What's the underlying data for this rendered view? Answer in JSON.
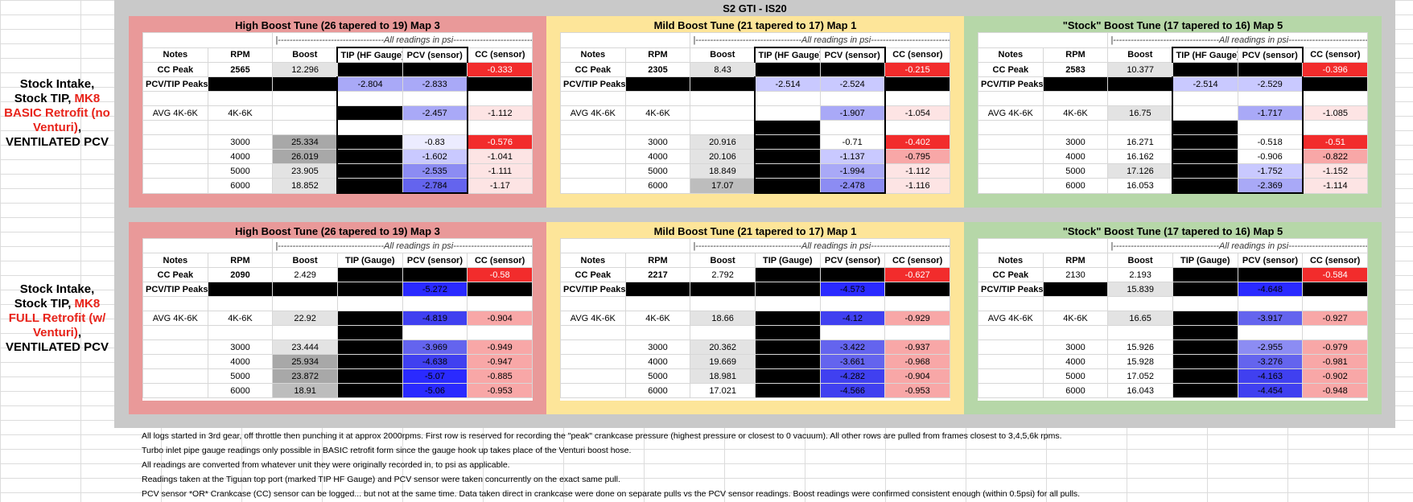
{
  "sheet_title": "S2 GTI - IS20",
  "row_labels": [
    {
      "line1": "Stock Intake,",
      "line2a": "Stock TIP, ",
      "line2b": "MK8",
      "line3": "BASIC Retrofit (no",
      "line4": "Venturi)",
      "line4b": ",",
      "line5": "VENTILATED PCV"
    },
    {
      "line1": "Stock Intake,",
      "line2a": "Stock TIP, ",
      "line2b": "MK8",
      "line3": "FULL Retrofit (w/",
      "line4": "Venturi)",
      "line4b": ",",
      "line5": "VENTILATED PCV"
    }
  ],
  "colors": {
    "high": "#e99999",
    "mild": "#fde599",
    "stock": "#b6d7a8",
    "gray": "#c9c9c9"
  },
  "panels": [
    {
      "title": "High Boost Tune (26 tapered to 19) Map 3",
      "note": "|------------------------------------All readings in psi------------------------------------|",
      "headers": [
        "Notes",
        "RPM",
        "Boost",
        "TIP (HF Gauge)",
        "PCV (sensor)",
        "CC (sensor)"
      ],
      "rows": [
        [
          "CC Peak",
          "2565",
          "12.296",
          "",
          "",
          "-0.333"
        ],
        [
          "PCV/TIP Peaks",
          "",
          "",
          "-2.804",
          "-2.833",
          ""
        ],
        [
          "",
          "",
          "",
          "",
          "",
          ""
        ],
        [
          "AVG 4K-6K",
          "4K-6K",
          "",
          "",
          "-2.457",
          "-1.112"
        ],
        [
          "",
          "",
          "",
          "",
          "",
          ""
        ],
        [
          "",
          "3000",
          "25.334",
          "",
          "-0.83",
          "-0.576"
        ],
        [
          "",
          "4000",
          "26.019",
          "",
          "-1.602",
          "-1.041"
        ],
        [
          "",
          "5000",
          "23.905",
          "",
          "-2.535",
          "-1.111"
        ],
        [
          "",
          "6000",
          "18.852",
          "",
          "-2.784",
          "-1.17"
        ]
      ]
    },
    {
      "title": "Mild Boost Tune (21 tapered to 17) Map 1",
      "note": "|------------------------------------All readings in psi------------------------------------|",
      "headers": [
        "Notes",
        "RPM",
        "Boost",
        "TIP (HF Gauge)",
        "PCV (sensor)",
        "CC (sensor)"
      ],
      "rows": [
        [
          "CC Peak",
          "2305",
          "8.43",
          "",
          "",
          "-0.215"
        ],
        [
          "PCV/TIP Peaks",
          "",
          "",
          "-2.514",
          "-2.524",
          ""
        ],
        [
          "",
          "",
          "",
          "",
          "",
          ""
        ],
        [
          "AVG 4K-6K",
          "4K-6K",
          "",
          "",
          "-1.907",
          "-1.054"
        ],
        [
          "",
          "",
          "",
          "",
          "",
          ""
        ],
        [
          "",
          "3000",
          "20.916",
          "",
          "-0.71",
          "-0.402"
        ],
        [
          "",
          "4000",
          "20.106",
          "",
          "-1.137",
          "-0.795"
        ],
        [
          "",
          "5000",
          "18.849",
          "",
          "-1.994",
          "-1.112"
        ],
        [
          "",
          "6000",
          "17.07",
          "",
          "-2.478",
          "-1.116"
        ]
      ]
    },
    {
      "title": "\"Stock\" Boost Tune (17 tapered to 16) Map 5",
      "note": "|------------------------------------All readings in psi------------------------------------|",
      "headers": [
        "Notes",
        "RPM",
        "Boost",
        "TIP (HF Gauge)",
        "PCV (sensor)",
        "CC (sensor)"
      ],
      "rows": [
        [
          "CC Peak",
          "2583",
          "10.377",
          "",
          "",
          "-0.396"
        ],
        [
          "PCV/TIP Peaks",
          "",
          "",
          "-2.514",
          "-2.529",
          ""
        ],
        [
          "",
          "",
          "",
          "",
          "",
          ""
        ],
        [
          "AVG 4K-6K",
          "4K-6K",
          "16.75",
          "",
          "-1.717",
          "-1.085"
        ],
        [
          "",
          "",
          "",
          "",
          "",
          ""
        ],
        [
          "",
          "3000",
          "16.271",
          "",
          "-0.518",
          "-0.51"
        ],
        [
          "",
          "4000",
          "16.162",
          "",
          "-0.906",
          "-0.822"
        ],
        [
          "",
          "5000",
          "17.126",
          "",
          "-1.752",
          "-1.152"
        ],
        [
          "",
          "6000",
          "16.053",
          "",
          "-2.369",
          "-1.114"
        ]
      ]
    },
    {
      "title": "High Boost Tune (26 tapered to 19) Map 3",
      "note": "|------------------------------------All readings in psi------------------------------------|",
      "headers": [
        "Notes",
        "RPM",
        "Boost",
        "TIP (Gauge)",
        "PCV (sensor)",
        "CC (sensor)"
      ],
      "rows": [
        [
          "CC Peak",
          "2090",
          "2.429",
          "",
          "",
          "-0.58"
        ],
        [
          "PCV/TIP Peaks",
          "",
          "",
          "",
          "-5.272",
          ""
        ],
        [
          "",
          "",
          "",
          "",
          "",
          ""
        ],
        [
          "AVG 4K-6K",
          "4K-6K",
          "22.92",
          "",
          "-4.819",
          "-0.904"
        ],
        [
          "",
          "",
          "",
          "",
          "",
          ""
        ],
        [
          "",
          "3000",
          "23.444",
          "",
          "-3.969",
          "-0.949"
        ],
        [
          "",
          "4000",
          "25.934",
          "",
          "-4.638",
          "-0.947"
        ],
        [
          "",
          "5000",
          "23.872",
          "",
          "-5.07",
          "-0.885"
        ],
        [
          "",
          "6000",
          "18.91",
          "",
          "-5.06",
          "-0.953"
        ]
      ]
    },
    {
      "title": "Mild Boost Tune (21 tapered to 17) Map 1",
      "note": "|------------------------------------All readings in psi------------------------------------|",
      "headers": [
        "Notes",
        "RPM",
        "Boost",
        "TIP (Gauge)",
        "PCV (sensor)",
        "CC (sensor)"
      ],
      "rows": [
        [
          "CC Peak",
          "2217",
          "2.792",
          "",
          "",
          "-0.627"
        ],
        [
          "PCV/TIP Peaks",
          "",
          "",
          "",
          "-4.573",
          ""
        ],
        [
          "",
          "",
          "",
          "",
          "",
          ""
        ],
        [
          "AVG 4K-6K",
          "4K-6K",
          "18.66",
          "",
          "-4.12",
          "-0.929"
        ],
        [
          "",
          "",
          "",
          "",
          "",
          ""
        ],
        [
          "",
          "3000",
          "20.362",
          "",
          "-3.422",
          "-0.937"
        ],
        [
          "",
          "4000",
          "19.669",
          "",
          "-3.661",
          "-0.968"
        ],
        [
          "",
          "5000",
          "18.981",
          "",
          "-4.282",
          "-0.904"
        ],
        [
          "",
          "6000",
          "17.021",
          "",
          "-4.566",
          "-0.953"
        ]
      ]
    },
    {
      "title": "\"Stock\" Boost Tune (17 tapered to 16) Map 5",
      "note": "|------------------------------------All readings in psi------------------------------------|",
      "headers": [
        "Notes",
        "RPM",
        "Boost",
        "TIP (Gauge)",
        "PCV (sensor)",
        "CC (sensor)"
      ],
      "rows": [
        [
          "CC Peak",
          "2130",
          "2.193",
          "",
          "",
          "-0.584"
        ],
        [
          "PCV/TIP Peaks",
          "",
          "15.839",
          "",
          "-4.648",
          ""
        ],
        [
          "",
          "",
          "",
          "",
          "",
          ""
        ],
        [
          "AVG 4K-6K",
          "4K-6K",
          "16.65",
          "",
          "-3.917",
          "-0.927"
        ],
        [
          "",
          "",
          "",
          "",
          "",
          ""
        ],
        [
          "",
          "3000",
          "15.926",
          "",
          "-2.955",
          "-0.979"
        ],
        [
          "",
          "4000",
          "15.928",
          "",
          "-3.276",
          "-0.981"
        ],
        [
          "",
          "5000",
          "17.052",
          "",
          "-4.163",
          "-0.902"
        ],
        [
          "",
          "6000",
          "16.043",
          "",
          "-4.454",
          "-0.948"
        ]
      ]
    }
  ],
  "footer_notes": [
    "All logs started in 3rd gear, off throttle then punching it at approx 2000rpms. First row is reserved for recording the \"peak\" crankcase pressure (highest pressure or closest to 0 vacuum). All other rows are pulled from frames closest to 3,4,5,6k rpms.",
    "Turbo inlet pipe gauge readings only possible in BASIC retrofit form since the gauge hook up takes place of the Venturi boost hose.",
    "All readings are converted from whatever unit they were originally recorded in, to psi as applicable.",
    "Readings taken at the Tiguan top port (marked TIP HF Gauge) and PCV sensor were taken concurrently on the exact same pull.",
    "PCV sensor *OR* Crankcase (CC) sensor can be logged... but not at the same time. Data taken direct in crankcase were done on separate pulls vs the PCV sensor readings. Boost readings were confirmed consistent enough (within 0.5psi) for all pulls."
  ]
}
